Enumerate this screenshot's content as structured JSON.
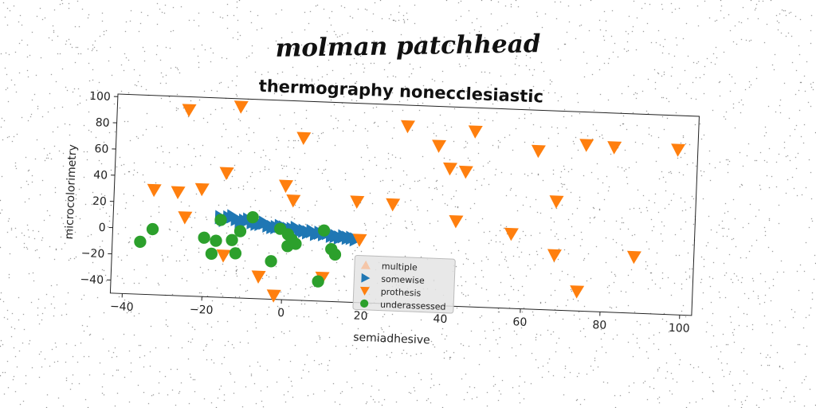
{
  "suptitle": "molman patchhead",
  "chart_data": {
    "type": "scatter",
    "title": "thermography nonecclesiastic",
    "xlabel": "semiadhesive",
    "ylabel": "microcolorimetry",
    "xlim": [
      -43,
      103
    ],
    "ylim": [
      -50,
      102
    ],
    "xticks": [
      "−40",
      "−20",
      "0",
      "20",
      "40",
      "60",
      "80",
      "100"
    ],
    "xtick_values": [
      -40,
      -20,
      0,
      20,
      40,
      60,
      80,
      100
    ],
    "yticks": [
      "−40",
      "−20",
      "0",
      "20",
      "40",
      "60",
      "80",
      "100"
    ],
    "ytick_values": [
      -40,
      -20,
      0,
      20,
      40,
      60,
      80,
      100
    ],
    "legend_position": "lower-center",
    "grid": false,
    "series": [
      {
        "name": "multiple",
        "marker": "triangle-up",
        "color": "#f5c6a8",
        "points": []
      },
      {
        "name": "somewise",
        "marker": "triangle-right",
        "color": "#1f77b4",
        "points": [
          [
            -16,
            11
          ],
          [
            -14,
            11
          ],
          [
            -12,
            10
          ],
          [
            -10,
            9
          ],
          [
            -8,
            8
          ],
          [
            -6,
            7
          ],
          [
            -4,
            6
          ],
          [
            -2,
            5
          ],
          [
            0,
            5
          ],
          [
            2,
            4
          ],
          [
            4,
            3
          ],
          [
            6,
            2
          ],
          [
            8,
            1
          ],
          [
            10,
            1
          ],
          [
            12,
            0
          ],
          [
            14,
            -1
          ],
          [
            16,
            -1
          ],
          [
            18,
            -2
          ],
          [
            -15,
            9
          ],
          [
            -11,
            8
          ],
          [
            -7,
            7
          ],
          [
            -3,
            5
          ],
          [
            1,
            4
          ],
          [
            5,
            3
          ],
          [
            9,
            2
          ],
          [
            13,
            0
          ],
          [
            17,
            -1
          ],
          [
            -13,
            12
          ],
          [
            -9,
            10
          ],
          [
            -5,
            8
          ],
          [
            -1,
            6
          ],
          [
            3,
            5
          ],
          [
            7,
            3
          ],
          [
            11,
            2
          ],
          [
            15,
            0
          ]
        ]
      },
      {
        "name": "prothesis",
        "marker": "triangle-down",
        "color": "#ff7f0e",
        "points": [
          [
            -25,
            92
          ],
          [
            -12,
            96
          ],
          [
            30,
            86
          ],
          [
            47,
            84
          ],
          [
            4,
            74
          ],
          [
            38,
            72
          ],
          [
            63,
            71
          ],
          [
            75,
            77
          ],
          [
            82,
            76
          ],
          [
            98,
            76
          ],
          [
            41,
            55
          ],
          [
            45,
            53
          ],
          [
            -15,
            45
          ],
          [
            0,
            37
          ],
          [
            -33,
            30
          ],
          [
            -27,
            29
          ],
          [
            -21,
            32
          ],
          [
            68,
            33
          ],
          [
            2,
            26
          ],
          [
            18,
            27
          ],
          [
            27,
            26
          ],
          [
            43,
            15
          ],
          [
            57,
            7
          ],
          [
            -25,
            10
          ],
          [
            19,
            -2
          ],
          [
            68,
            -8
          ],
          [
            88,
            -7
          ],
          [
            -15,
            -18
          ],
          [
            -6,
            -33
          ],
          [
            10,
            -32
          ],
          [
            -2,
            -47
          ],
          [
            74,
            -35
          ]
        ]
      },
      {
        "name": "underassessed",
        "marker": "circle",
        "color": "#2ca02c",
        "points": [
          [
            -36,
            -10
          ],
          [
            -33,
            0
          ],
          [
            -20,
            -5
          ],
          [
            -17,
            -7
          ],
          [
            -18,
            -17
          ],
          [
            -16,
            9
          ],
          [
            -12,
            -16
          ],
          [
            -13,
            -6
          ],
          [
            -11,
            1
          ],
          [
            -8,
            12
          ],
          [
            -3,
            -21
          ],
          [
            -1,
            4
          ],
          [
            1,
            0
          ],
          [
            2,
            -4
          ],
          [
            1,
            -9
          ],
          [
            3,
            -7
          ],
          [
            10,
            4
          ],
          [
            12,
            -10
          ],
          [
            13,
            -14
          ],
          [
            9,
            -35
          ]
        ]
      }
    ]
  }
}
